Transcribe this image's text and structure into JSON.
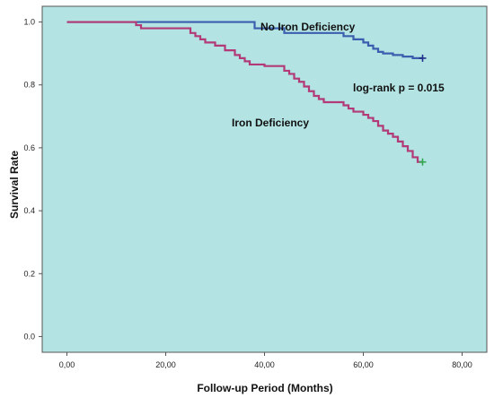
{
  "chart_data": {
    "type": "line",
    "step": true,
    "xlabel": "Follow-up Period (Months)",
    "ylabel": "Survival Rate",
    "xlim": [
      -5,
      85
    ],
    "ylim": [
      -0.05,
      1.05
    ],
    "x_ticks": [
      0,
      20,
      40,
      60,
      80
    ],
    "x_tick_labels": [
      "0,00",
      "20,00",
      "40,00",
      "60,00",
      "80,00"
    ],
    "y_ticks": [
      0.0,
      0.2,
      0.4,
      0.6,
      0.8,
      1.0
    ],
    "y_tick_labels": [
      "0.0",
      "0.2",
      "0.4",
      "0.6",
      "0.8",
      "1.0"
    ],
    "plot_background": "#b3e3e3",
    "grid": false,
    "series": [
      {
        "name": "No Iron Deficiency",
        "color": "#3b5fae",
        "censor_color": "#1f2f8a",
        "x": [
          0,
          38,
          44,
          56,
          58,
          60,
          61,
          62,
          63,
          64,
          66,
          68,
          70,
          72
        ],
        "y": [
          1.0,
          0.98,
          0.965,
          0.955,
          0.945,
          0.935,
          0.925,
          0.915,
          0.905,
          0.9,
          0.895,
          0.89,
          0.885,
          0.885
        ],
        "censored": [
          [
            72,
            0.885
          ]
        ]
      },
      {
        "name": "Iron Deficiency",
        "color": "#b23a77",
        "censor_color": "#2fa84f",
        "x": [
          0,
          14,
          15,
          25,
          26,
          27,
          28,
          30,
          32,
          34,
          35,
          36,
          37,
          40,
          44,
          45,
          46,
          47,
          48,
          49,
          50,
          51,
          52,
          56,
          57,
          58,
          60,
          61,
          62,
          63,
          64,
          65,
          66,
          67,
          68,
          69,
          70,
          71,
          72
        ],
        "y": [
          1.0,
          0.99,
          0.98,
          0.965,
          0.955,
          0.945,
          0.935,
          0.925,
          0.91,
          0.895,
          0.885,
          0.875,
          0.865,
          0.86,
          0.845,
          0.835,
          0.82,
          0.81,
          0.795,
          0.78,
          0.765,
          0.755,
          0.745,
          0.735,
          0.725,
          0.715,
          0.705,
          0.695,
          0.685,
          0.67,
          0.655,
          0.645,
          0.635,
          0.62,
          0.605,
          0.59,
          0.57,
          0.555,
          0.555
        ],
        "censored": [
          [
            72,
            0.555
          ]
        ]
      }
    ],
    "annotations": [
      {
        "text": "log-rank p = 0.015"
      }
    ]
  }
}
